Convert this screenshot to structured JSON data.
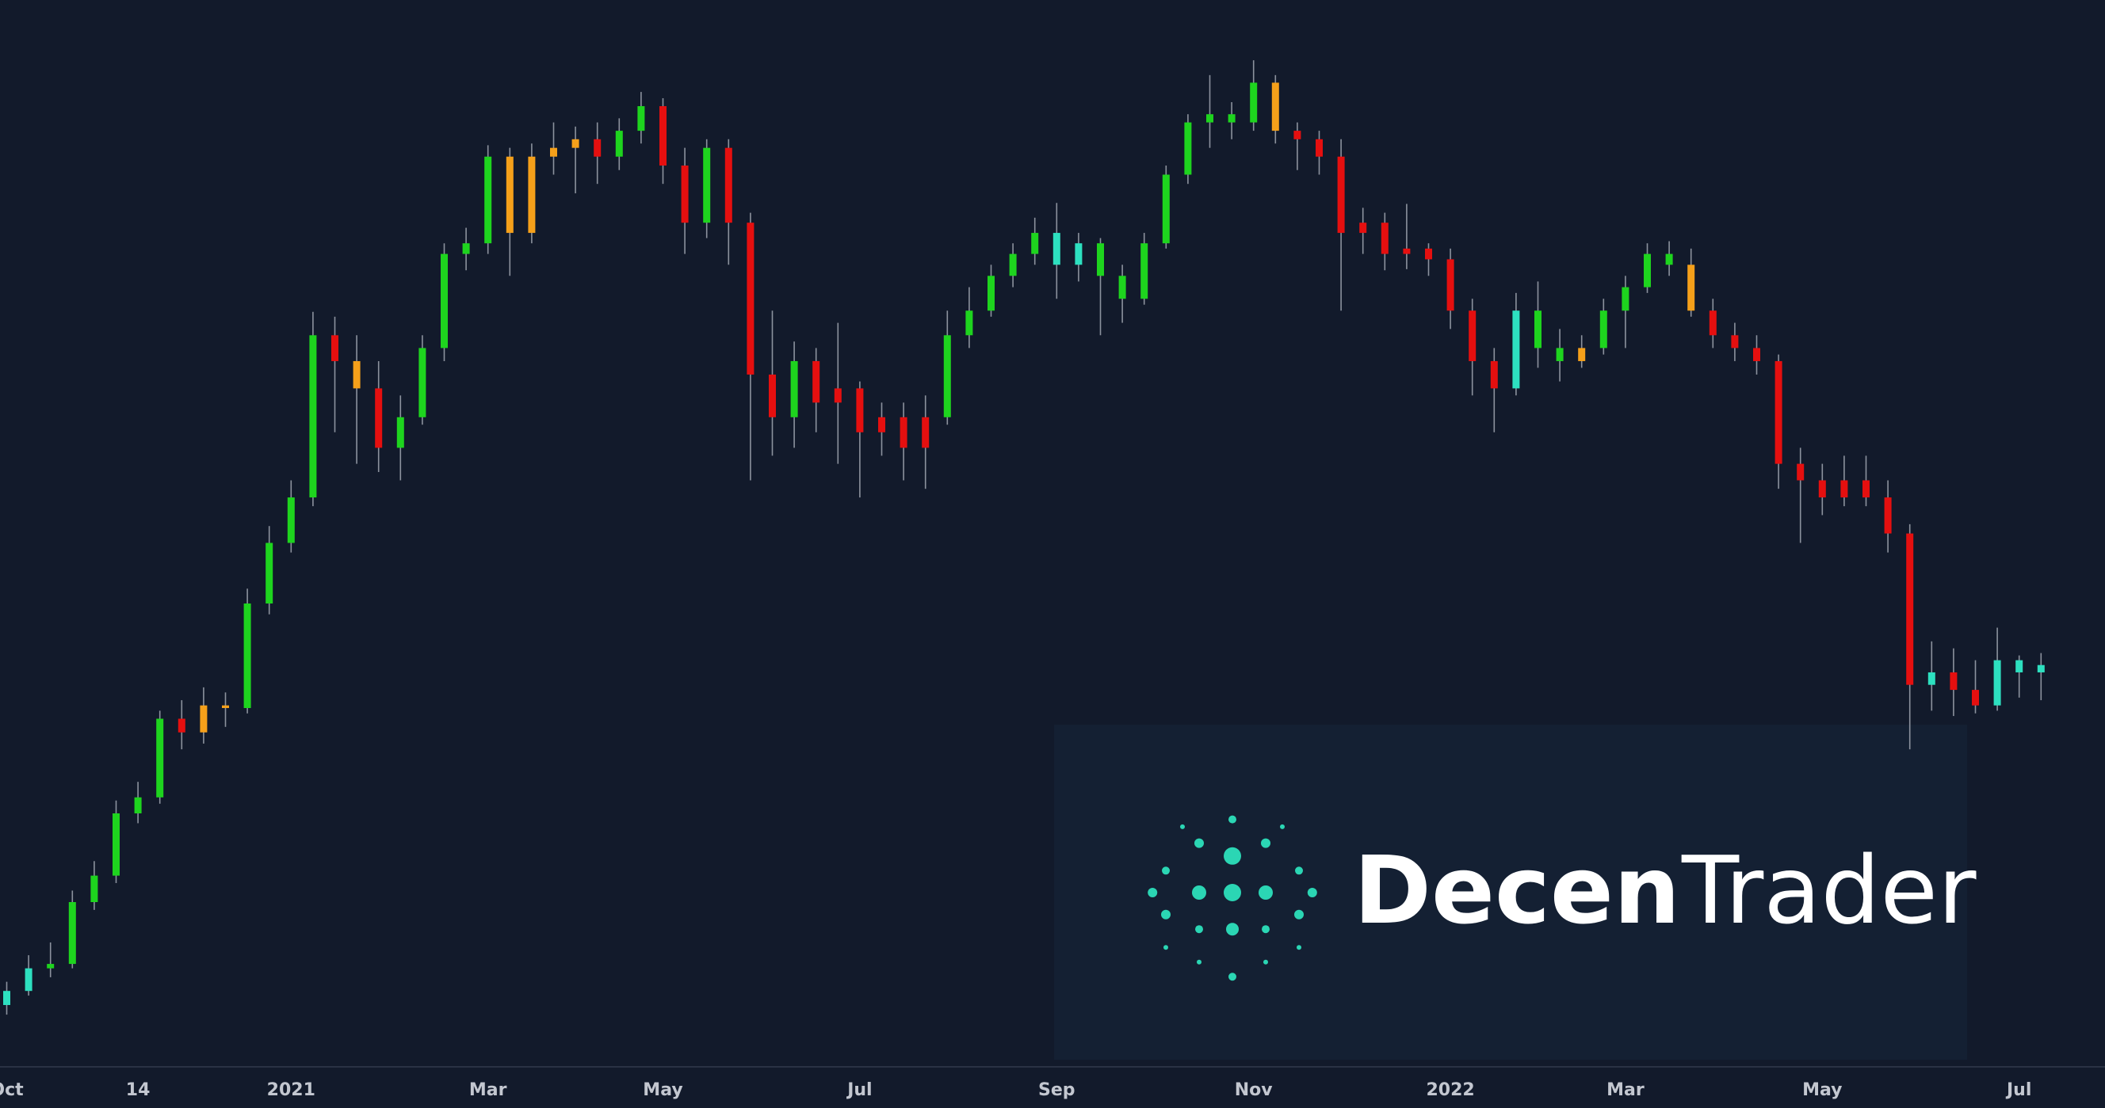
{
  "watermark": {
    "primary": "Decen",
    "secondary": "Trader"
  },
  "chart_data": {
    "type": "candlestick",
    "log_scale": true,
    "ylim": [
      10500,
      75000
    ],
    "categories": [
      "Oct",
      null,
      null,
      null,
      null,
      null,
      "14",
      null,
      null,
      null,
      null,
      null,
      null,
      "2021",
      null,
      null,
      null,
      null,
      null,
      null,
      null,
      null,
      "Mar",
      null,
      null,
      null,
      null,
      null,
      null,
      null,
      "May",
      null,
      null,
      null,
      null,
      null,
      null,
      null,
      null,
      "Jul",
      null,
      null,
      null,
      null,
      null,
      null,
      null,
      null,
      "Sep",
      null,
      null,
      null,
      null,
      null,
      null,
      null,
      null,
      "Nov",
      null,
      null,
      null,
      null,
      null,
      null,
      null,
      null,
      "2022",
      null,
      null,
      null,
      null,
      null,
      null,
      null,
      "Mar",
      null,
      null,
      null,
      null,
      null,
      null,
      null,
      null,
      "May",
      null,
      null,
      null,
      null,
      null,
      null,
      null,
      null,
      "Jul",
      null
    ],
    "open": [
      10600,
      10900,
      11400,
      11500,
      13000,
      13700,
      15500,
      16000,
      18700,
      18200,
      19200,
      19100,
      23500,
      26500,
      29000,
      40000,
      38000,
      36000,
      32000,
      34000,
      39000,
      47000,
      48000,
      57000,
      49000,
      57000,
      58000,
      59000,
      57000,
      60000,
      63000,
      56000,
      50000,
      58000,
      50000,
      37000,
      34000,
      38000,
      35000,
      36000,
      33000,
      34000,
      32000,
      34000,
      40000,
      42000,
      45000,
      47000,
      49000,
      46000,
      48000,
      45000,
      43000,
      48000,
      55000,
      61000,
      62000,
      61000,
      66000,
      60000,
      59000,
      57000,
      49000,
      50000,
      47000,
      47500,
      46500,
      42000,
      38000,
      36000,
      42000,
      39000,
      38000,
      39000,
      42000,
      44000,
      47000,
      46000,
      42000,
      40000,
      39000,
      38000,
      31000,
      30000,
      29000,
      30000,
      29000,
      27000,
      20000,
      20500,
      19800,
      19200,
      21000,
      20500
    ],
    "high": [
      11100,
      11700,
      12000,
      13300,
      14100,
      15900,
      16500,
      19000,
      19400,
      19900,
      19700,
      24200,
      27400,
      30000,
      41900,
      41500,
      40000,
      38000,
      35500,
      40000,
      48000,
      49500,
      58300,
      58000,
      58500,
      61000,
      60500,
      61000,
      61500,
      64800,
      64000,
      58000,
      59000,
      59000,
      51000,
      42000,
      39500,
      39000,
      41000,
      36500,
      35000,
      35000,
      35500,
      42000,
      44000,
      46000,
      48000,
      50500,
      52000,
      49000,
      48500,
      46000,
      49000,
      56000,
      62000,
      67000,
      63500,
      69000,
      67000,
      61000,
      60000,
      59000,
      51500,
      51000,
      51900,
      48000,
      47500,
      43000,
      39000,
      43500,
      44500,
      40500,
      40000,
      43000,
      45000,
      48000,
      48200,
      47500,
      43000,
      41000,
      40000,
      38500,
      32000,
      31000,
      31500,
      31500,
      30000,
      27500,
      21800,
      21500,
      21000,
      22400,
      21200,
      21300
    ],
    "low": [
      10400,
      10800,
      11200,
      11400,
      12800,
      13500,
      15200,
      15800,
      17600,
      17800,
      18400,
      18900,
      23000,
      26000,
      28500,
      33000,
      31000,
      30500,
      30000,
      33500,
      38000,
      45500,
      47000,
      45000,
      48000,
      55000,
      53000,
      54000,
      55500,
      58500,
      54000,
      47000,
      48500,
      46000,
      30000,
      31500,
      32000,
      33000,
      31000,
      29000,
      31500,
      30000,
      29500,
      33500,
      39000,
      41500,
      44000,
      46000,
      43000,
      44500,
      40000,
      41000,
      42500,
      47500,
      54000,
      58000,
      59000,
      60000,
      58500,
      55500,
      55000,
      42000,
      47000,
      45500,
      45600,
      45000,
      40500,
      35500,
      33000,
      35500,
      37500,
      36500,
      37500,
      38500,
      39000,
      43500,
      45000,
      41500,
      39000,
      38000,
      37000,
      29500,
      26500,
      28000,
      28500,
      28500,
      26000,
      17600,
      19000,
      18800,
      18900,
      19000,
      19500,
      19400
    ],
    "close": [
      10900,
      11400,
      11500,
      13000,
      13700,
      15500,
      16000,
      18700,
      18200,
      19200,
      19100,
      23500,
      26500,
      29000,
      40000,
      38000,
      36000,
      32000,
      34000,
      39000,
      47000,
      48000,
      57000,
      49000,
      57000,
      58000,
      59000,
      57000,
      60000,
      63000,
      56000,
      50000,
      58000,
      50000,
      37000,
      34000,
      38000,
      35000,
      36000,
      33000,
      34000,
      32000,
      34000,
      40000,
      42000,
      45000,
      47000,
      49000,
      46000,
      48000,
      45000,
      43000,
      48000,
      55000,
      61000,
      62000,
      61000,
      66000,
      60000,
      59000,
      57000,
      49000,
      50000,
      47000,
      47500,
      46500,
      42000,
      38000,
      36000,
      42000,
      39000,
      38000,
      39000,
      42000,
      44000,
      47000,
      46000,
      42000,
      40000,
      39000,
      38000,
      31000,
      30000,
      29000,
      30000,
      29000,
      27000,
      20000,
      20500,
      19800,
      19200,
      21000,
      20500,
      20800
    ],
    "colors": [
      "#2de0c0",
      "#2de0c0",
      "#1ed41e",
      "#1ed41e",
      "#1ed41e",
      "#1ed41e",
      "#1ed41e",
      "#1ed41e",
      "#e50f0f",
      "#f5a01a",
      "#f5a01a",
      "#1ed41e",
      "#1ed41e",
      "#1ed41e",
      "#1ed41e",
      "#e50f0f",
      "#f5a01a",
      "#e50f0f",
      "#1ed41e",
      "#1ed41e",
      "#1ed41e",
      "#1ed41e",
      "#1ed41e",
      "#f5a01a",
      "#f5a01a",
      "#f5a01a",
      "#f5a01a",
      "#e50f0f",
      "#1ed41e",
      "#1ed41e",
      "#e50f0f",
      "#e50f0f",
      "#1ed41e",
      "#e50f0f",
      "#e50f0f",
      "#e50f0f",
      "#1ed41e",
      "#e50f0f",
      "#e50f0f",
      "#e50f0f",
      "#e50f0f",
      "#e50f0f",
      "#e50f0f",
      "#1ed41e",
      "#1ed41e",
      "#1ed41e",
      "#1ed41e",
      "#1ed41e",
      "#2de0c0",
      "#2de0c0",
      "#1ed41e",
      "#1ed41e",
      "#1ed41e",
      "#1ed41e",
      "#1ed41e",
      "#1ed41e",
      "#1ed41e",
      "#1ed41e",
      "#f5a01a",
      "#e50f0f",
      "#e50f0f",
      "#e50f0f",
      "#e50f0f",
      "#e50f0f",
      "#e50f0f",
      "#e50f0f",
      "#e50f0f",
      "#e50f0f",
      "#e50f0f",
      "#2de0c0",
      "#1ed41e",
      "#1ed41e",
      "#f5a01a",
      "#1ed41e",
      "#1ed41e",
      "#1ed41e",
      "#1ed41e",
      "#f5a01a",
      "#e50f0f",
      "#e50f0f",
      "#e50f0f",
      "#e50f0f",
      "#e50f0f",
      "#e50f0f",
      "#e50f0f",
      "#e50f0f",
      "#e50f0f",
      "#e50f0f",
      "#2de0c0",
      "#e50f0f",
      "#e50f0f",
      "#2de0c0",
      "#2de0c0",
      "#2de0c0"
    ]
  }
}
